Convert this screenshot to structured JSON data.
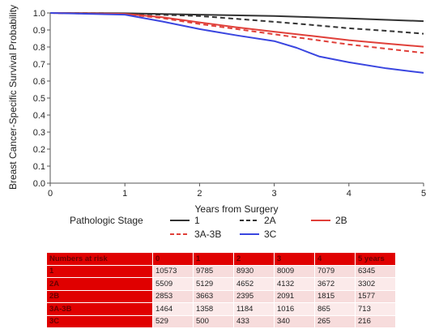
{
  "chart_data": {
    "type": "line",
    "title": "",
    "xlabel": "Years from Surgery",
    "ylabel": "Breast Cancer-Specific Survival Probability",
    "xlim": [
      0,
      5
    ],
    "ylim": [
      0,
      1.0
    ],
    "x_ticks": [
      "0",
      "1",
      "2",
      "3",
      "4",
      "5"
    ],
    "y_ticks": [
      "0.0",
      "0.1",
      "0.2",
      "0.3",
      "0.4",
      "0.5",
      "0.6",
      "0.7",
      "0.8",
      "0.9",
      "1.0"
    ],
    "grid": false,
    "legend": {
      "title": "Pathologic Stage",
      "placement": "bottom"
    },
    "series": [
      {
        "name": "1",
        "color": "#333333",
        "dash": "solid",
        "x": [
          0,
          1,
          2,
          3,
          4,
          5
        ],
        "y": [
          1.0,
          0.998,
          0.99,
          0.982,
          0.968,
          0.952
        ]
      },
      {
        "name": "2A",
        "color": "#333333",
        "dash": "dashed",
        "x": [
          0,
          1,
          2,
          2.5,
          3,
          3.5,
          4,
          4.5,
          5
        ],
        "y": [
          1.0,
          0.997,
          0.982,
          0.965,
          0.948,
          0.93,
          0.91,
          0.895,
          0.878
        ]
      },
      {
        "name": "2B",
        "color": "#e0403a",
        "dash": "solid",
        "x": [
          0,
          1,
          1.5,
          2,
          2.5,
          3,
          3.5,
          4,
          4.5,
          5
        ],
        "y": [
          1.0,
          0.995,
          0.975,
          0.945,
          0.915,
          0.89,
          0.865,
          0.84,
          0.82,
          0.802
        ]
      },
      {
        "name": "3A-3B",
        "color": "#e0403a",
        "dash": "dashed",
        "x": [
          0,
          1,
          1.5,
          2,
          2.5,
          3,
          3.5,
          4,
          4.5,
          5
        ],
        "y": [
          1.0,
          0.993,
          0.97,
          0.935,
          0.905,
          0.875,
          0.845,
          0.815,
          0.79,
          0.765
        ]
      },
      {
        "name": "3C",
        "color": "#3a46e0",
        "dash": "solid",
        "x": [
          0,
          1,
          1.5,
          2,
          2.5,
          3,
          3.3,
          3.6,
          4,
          4.5,
          5
        ],
        "y": [
          1.0,
          0.99,
          0.95,
          0.905,
          0.868,
          0.835,
          0.795,
          0.745,
          0.71,
          0.675,
          0.648
        ]
      }
    ]
  },
  "risk_table": {
    "header": [
      "Numbers at risk",
      "0",
      "1",
      "2",
      "3",
      "4",
      "5 years"
    ],
    "rows": [
      {
        "stage": "1",
        "values": [
          "10573",
          "9785",
          "8930",
          "8009",
          "7079",
          "6345"
        ]
      },
      {
        "stage": "2A",
        "values": [
          "5509",
          "5129",
          "4652",
          "4132",
          "3672",
          "3302"
        ]
      },
      {
        "stage": "2B",
        "values": [
          "2853",
          "3663",
          "2395",
          "2091",
          "1815",
          "1577"
        ]
      },
      {
        "stage": "3A-3B",
        "values": [
          "1464",
          "1358",
          "1184",
          "1016",
          "865",
          "713"
        ]
      },
      {
        "stage": "3C",
        "values": [
          "529",
          "500",
          "433",
          "340",
          "265",
          "216"
        ]
      }
    ]
  }
}
